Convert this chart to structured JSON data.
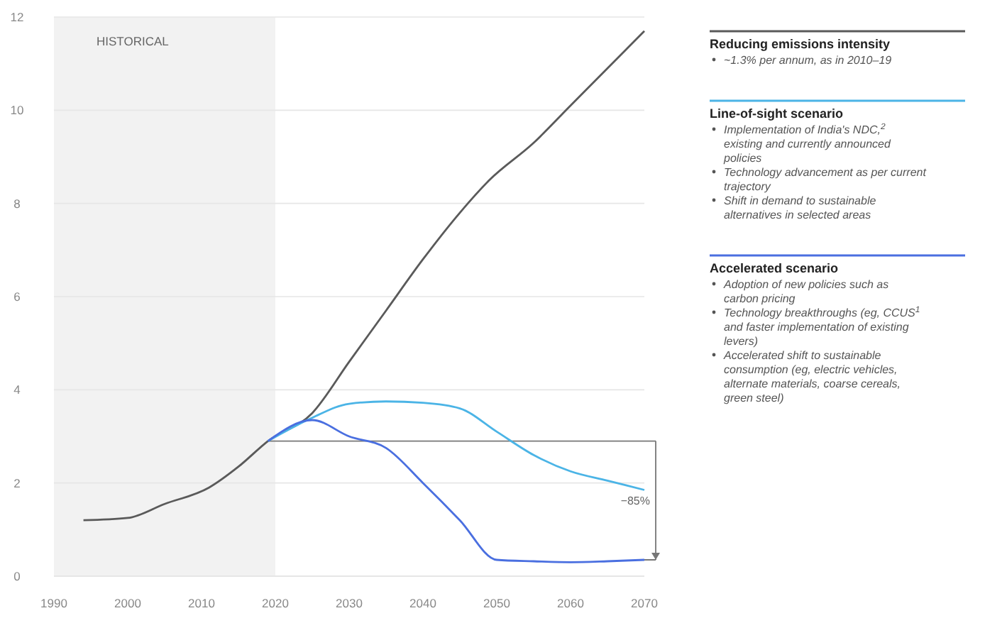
{
  "chart_data": {
    "type": "line",
    "xlim": [
      1990,
      2070
    ],
    "xticks": [
      1990,
      2000,
      2010,
      2020,
      2030,
      2040,
      2050,
      2060,
      2070
    ],
    "ylim": [
      0,
      12
    ],
    "yticks": [
      0,
      2,
      4,
      6,
      8,
      10,
      12
    ],
    "grid": "y",
    "legend": "right",
    "series": [
      {
        "name": "Reducing emissions intensity",
        "color": "#5a5a5a",
        "x": [
          1994,
          2000,
          2005,
          2011,
          2015,
          2019,
          2025,
          2030,
          2035,
          2040,
          2045,
          2049,
          2055,
          2060,
          2065,
          2070
        ],
        "values": [
          1.2,
          1.25,
          1.55,
          1.9,
          2.35,
          2.9,
          3.5,
          4.6,
          5.7,
          6.8,
          7.8,
          8.5,
          9.3,
          10.1,
          10.9,
          11.7
        ]
      },
      {
        "name": "Line-of-sight scenario",
        "color": "#4bb4e6",
        "x": [
          2019,
          2025,
          2030,
          2035,
          2040,
          2045,
          2050,
          2055,
          2060,
          2065,
          2070
        ],
        "values": [
          2.9,
          3.4,
          3.7,
          3.75,
          3.72,
          3.6,
          3.1,
          2.6,
          2.25,
          2.05,
          1.85
        ]
      },
      {
        "name": "Accelerated scenario",
        "color": "#4a6fe0",
        "x": [
          2019,
          2025,
          2030,
          2035,
          2040,
          2045,
          2050,
          2055,
          2060,
          2065,
          2070
        ],
        "values": [
          2.9,
          3.35,
          3.0,
          2.75,
          2.0,
          1.2,
          0.35,
          0.32,
          0.3,
          0.32,
          0.35
        ]
      }
    ],
    "bands": [
      {
        "axis": "x",
        "from": 1990,
        "to": 2020,
        "label": "HISTORICAL",
        "color": "#f2f2f2"
      }
    ],
    "ref_lines": [
      {
        "axis": "y",
        "value": 2.9,
        "color": "#777777"
      }
    ],
    "annotations": [
      "~1.3% per annum, as in 2010–19",
      "Implementation of India's NDC,$^{2}$ existing and currently announced policies",
      "Technology advancement as per current trajectory",
      "Shift in demand to sustainable alternatives in selected areas",
      "Adoption of new policies such as carbon pricing",
      "Technology breakthroughs (eg, CCUS$^{1}$ and faster implementation of existing levers)",
      "Accelerated shift to sustainable consumption (eg, electric vehicles, alternate materials, coarse cereals, green steel)",
      "−85%"
    ]
  }
}
